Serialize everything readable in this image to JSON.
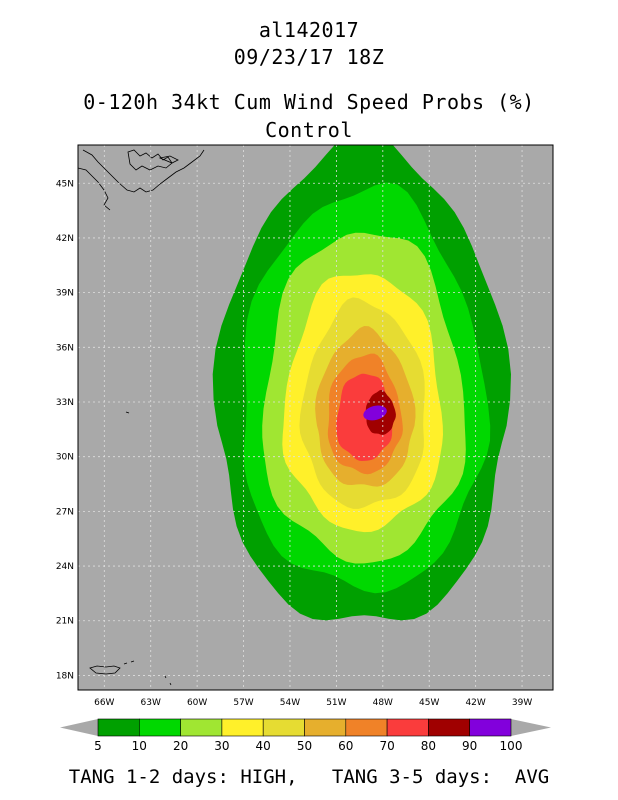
{
  "header": {
    "storm_id": "al142017",
    "datetime": "09/23/17 18Z",
    "product": "0-120h 34kt Cum Wind Speed Probs (%)",
    "model": "Control"
  },
  "map_data": {
    "lon_range": [
      -67.7,
      -37.0
    ],
    "lat_range": [
      17.2,
      47.1
    ],
    "lat_ticks": [
      {
        "value": 18,
        "label": "18N"
      },
      {
        "value": 21,
        "label": "21N"
      },
      {
        "value": 24,
        "label": "24N"
      },
      {
        "value": 27,
        "label": "27N"
      },
      {
        "value": 30,
        "label": "30N"
      },
      {
        "value": 33,
        "label": "33N"
      },
      {
        "value": 36,
        "label": "36N"
      },
      {
        "value": 39,
        "label": "39N"
      },
      {
        "value": 42,
        "label": "42N"
      },
      {
        "value": 45,
        "label": "45N"
      }
    ],
    "lon_ticks": [
      {
        "value": -66,
        "label": "66W"
      },
      {
        "value": -63,
        "label": "63W"
      },
      {
        "value": -60,
        "label": "60W"
      },
      {
        "value": -57,
        "label": "57W"
      },
      {
        "value": -54,
        "label": "54W"
      },
      {
        "value": -51,
        "label": "51W"
      },
      {
        "value": -48,
        "label": "48W"
      },
      {
        "value": -45,
        "label": "45W"
      },
      {
        "value": -42,
        "label": "42W"
      },
      {
        "value": -39,
        "label": "39W"
      }
    ],
    "background_color": "#a9a9a9",
    "center": {
      "lon": -49.2,
      "lat": 31.7
    },
    "contours": [
      {
        "level": 5,
        "color": "#00a000",
        "r": [
          15.5,
          9.2,
          11.0,
          9.5
        ]
      },
      {
        "level": 10,
        "color": "#00d800",
        "r": [
          13.0,
          7.8,
          9.0,
          8.0
        ]
      },
      {
        "level": 20,
        "color": "#a0e632",
        "r": [
          10.8,
          6.5,
          7.4,
          6.6
        ]
      },
      {
        "level": 30,
        "color": "#fff02a",
        "r": [
          8.5,
          5.1,
          5.7,
          5.2
        ]
      },
      {
        "level": 40,
        "color": "#e6dc32",
        "r": [
          6.8,
          4.0,
          4.5,
          4.0
        ]
      },
      {
        "level": 50,
        "color": "#e6af2d",
        "r": [
          5.2,
          3.2,
          3.4,
          3.1
        ]
      },
      {
        "level": 60,
        "color": "#f08228",
        "r": [
          3.9,
          2.4,
          2.6,
          2.4
        ]
      },
      {
        "level": 70,
        "color": "#fa3c3c",
        "r": [
          2.9,
          1.8,
          1.9,
          1.8
        ]
      }
    ],
    "core": {
      "level": 80,
      "color": "#a00000",
      "center": {
        "lon": -48.2,
        "lat": 32.2
      }
    },
    "peak": {
      "level": 90,
      "color": "#8200dc",
      "center": {
        "lon": -48.5,
        "lat": 32.4
      }
    }
  },
  "colorbar": {
    "labels": [
      "5",
      "10",
      "20",
      "30",
      "40",
      "50",
      "60",
      "70",
      "80",
      "90",
      "100"
    ],
    "colors": [
      "#00a000",
      "#00d800",
      "#a0e632",
      "#fff02a",
      "#e6dc32",
      "#e6af2d",
      "#f08228",
      "#fa3c3c",
      "#a00000",
      "#8200dc"
    ],
    "under_color": "#a9a9a9",
    "over_color": "#a9a9a9"
  },
  "footer": {
    "text": "TANG 1-2 days: HIGH,   TANG 3-5 days:  AVG"
  }
}
